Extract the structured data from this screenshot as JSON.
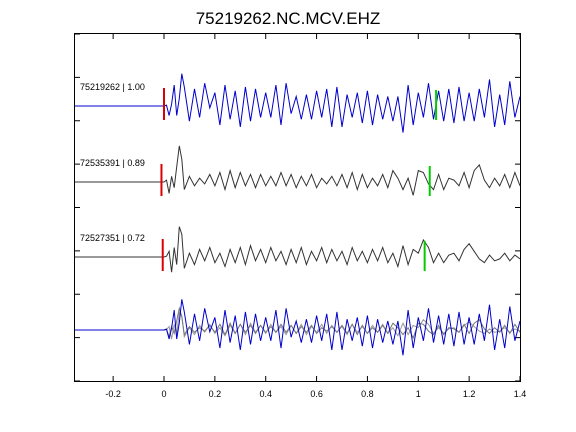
{
  "chart_data": {
    "type": "line",
    "title": "75219262.NC.MCV.EHZ",
    "xlabel": "",
    "ylabel": "",
    "xlim": [
      -0.35,
      1.4
    ],
    "x_ticks": [
      -0.2,
      0,
      0.2,
      0.4,
      0.6,
      0.8,
      1,
      1.2,
      1.4
    ],
    "x_tick_labels": [
      "-0.2",
      "0",
      "0.2",
      "0.4",
      "0.6",
      "0.8",
      "1",
      "1.2",
      "1.4"
    ],
    "grid": false,
    "traces": [
      {
        "label": "75219262 | 1.00",
        "color": "#0000cc",
        "p_pick": 0.0,
        "s_pick": 1.07,
        "p_color": "#dd0000",
        "s_color": "#00cc00",
        "x": [
          -0.35,
          0,
          0.01,
          0.02,
          0.03,
          0.04,
          0.05,
          0.06,
          0.07,
          0.08,
          0.1,
          0.12,
          0.14,
          0.16,
          0.18,
          0.2,
          0.22,
          0.24,
          0.26,
          0.28,
          0.3,
          0.32,
          0.34,
          0.36,
          0.38,
          0.4,
          0.42,
          0.44,
          0.46,
          0.48,
          0.5,
          0.52,
          0.54,
          0.56,
          0.58,
          0.6,
          0.62,
          0.64,
          0.66,
          0.68,
          0.7,
          0.72,
          0.74,
          0.76,
          0.78,
          0.8,
          0.82,
          0.84,
          0.86,
          0.88,
          0.9,
          0.92,
          0.94,
          0.96,
          0.98,
          1,
          1.02,
          1.04,
          1.06,
          1.08,
          1.1,
          1.12,
          1.14,
          1.16,
          1.18,
          1.2,
          1.22,
          1.24,
          1.26,
          1.28,
          1.3,
          1.32,
          1.34,
          1.36,
          1.38,
          1.4
        ],
        "y": [
          0,
          0,
          0.02,
          -0.25,
          0.05,
          0.55,
          -0.25,
          0.2,
          0.85,
          0.5,
          -0.4,
          0.45,
          -0.3,
          0.6,
          -0.05,
          0.35,
          -0.5,
          0.55,
          -0.35,
          0.4,
          -0.55,
          0.5,
          -0.4,
          0.45,
          -0.3,
          0.35,
          -0.3,
          0.55,
          -0.5,
          0.6,
          -0.2,
          0.25,
          -0.35,
          0.3,
          -0.35,
          0.4,
          -0.3,
          0.45,
          -0.55,
          0.5,
          -0.55,
          0.3,
          -0.3,
          0.35,
          -0.45,
          0.4,
          -0.5,
          0.3,
          -0.35,
          0.25,
          -0.4,
          0.25,
          -0.7,
          0.55,
          -0.5,
          0.35,
          -0.3,
          0.6,
          -0.35,
          0.4,
          -0.4,
          0.45,
          -0.45,
          0.5,
          -0.4,
          0.35,
          -0.4,
          0.45,
          -0.3,
          0.7,
          -0.55,
          0.3,
          -0.5,
          0.65,
          -0.3,
          0.25
        ]
      },
      {
        "label": "72535391 | 0.89",
        "color": "#333333",
        "p_pick": -0.01,
        "s_pick": 1.045,
        "p_color": "#dd0000",
        "s_color": "#00cc00",
        "x": [
          -0.35,
          0,
          0.01,
          0.02,
          0.03,
          0.04,
          0.05,
          0.06,
          0.07,
          0.08,
          0.1,
          0.12,
          0.14,
          0.16,
          0.18,
          0.2,
          0.22,
          0.24,
          0.26,
          0.28,
          0.3,
          0.32,
          0.34,
          0.36,
          0.38,
          0.4,
          0.42,
          0.44,
          0.46,
          0.48,
          0.5,
          0.52,
          0.54,
          0.56,
          0.58,
          0.6,
          0.62,
          0.64,
          0.66,
          0.68,
          0.7,
          0.72,
          0.74,
          0.76,
          0.78,
          0.8,
          0.82,
          0.84,
          0.86,
          0.88,
          0.9,
          0.92,
          0.94,
          0.96,
          0.98,
          1,
          1.02,
          1.04,
          1.06,
          1.08,
          1.1,
          1.12,
          1.14,
          1.16,
          1.18,
          1.2,
          1.22,
          1.24,
          1.26,
          1.28,
          1.3,
          1.32,
          1.34,
          1.36,
          1.38,
          1.4
        ],
        "y": [
          0,
          0,
          0.05,
          -0.3,
          0.15,
          -0.15,
          0.4,
          0.95,
          0.6,
          -0.2,
          0.15,
          -0.1,
          0.1,
          -0.05,
          0.2,
          -0.1,
          0.25,
          -0.2,
          0.3,
          -0.15,
          0.25,
          -0.1,
          0.2,
          -0.15,
          0.2,
          -0.1,
          0.15,
          -0.1,
          0.25,
          -0.1,
          0.2,
          -0.15,
          0.15,
          -0.1,
          0.2,
          -0.15,
          0.1,
          -0.05,
          0.15,
          -0.1,
          0.2,
          -0.15,
          0.25,
          -0.2,
          0.2,
          -0.15,
          0.1,
          -0.1,
          0.2,
          -0.15,
          0.3,
          0.1,
          -0.2,
          0.1,
          -0.35,
          0.3,
          0.25,
          -0.05,
          -0.2,
          0.2,
          -0.2,
          0.1,
          0.05,
          -0.1,
          0.25,
          -0.15,
          0.3,
          0.45,
          0.05,
          -0.15,
          0.1,
          -0.1,
          0.2,
          -0.15,
          0.25,
          -0.1
        ]
      },
      {
        "label": "72527351 | 0.72",
        "color": "#333333",
        "p_pick": -0.005,
        "s_pick": 1.025,
        "p_color": "#dd0000",
        "s_color": "#00cc00",
        "x": [
          -0.35,
          0,
          0.01,
          0.02,
          0.03,
          0.04,
          0.05,
          0.06,
          0.07,
          0.08,
          0.1,
          0.12,
          0.14,
          0.16,
          0.18,
          0.2,
          0.22,
          0.24,
          0.26,
          0.28,
          0.3,
          0.32,
          0.34,
          0.36,
          0.38,
          0.4,
          0.42,
          0.44,
          0.46,
          0.48,
          0.5,
          0.52,
          0.54,
          0.56,
          0.58,
          0.6,
          0.62,
          0.64,
          0.66,
          0.68,
          0.7,
          0.72,
          0.74,
          0.76,
          0.78,
          0.8,
          0.82,
          0.84,
          0.86,
          0.88,
          0.9,
          0.92,
          0.94,
          0.96,
          0.98,
          1,
          1.02,
          1.04,
          1.06,
          1.08,
          1.1,
          1.12,
          1.14,
          1.16,
          1.18,
          1.2,
          1.22,
          1.24,
          1.26,
          1.28,
          1.3,
          1.32,
          1.34,
          1.36,
          1.38,
          1.4
        ],
        "y": [
          0,
          0,
          0.02,
          0.15,
          -0.4,
          0.25,
          -0.2,
          0.8,
          0.6,
          -0.3,
          0.1,
          -0.2,
          0.2,
          -0.1,
          0.25,
          -0.15,
          0.1,
          -0.25,
          0.2,
          -0.15,
          0.25,
          -0.2,
          0.3,
          -0.1,
          0.2,
          -0.15,
          0.25,
          -0.1,
          0.15,
          -0.2,
          0.2,
          -0.15,
          0.25,
          -0.2,
          0.15,
          -0.1,
          0.25,
          -0.15,
          0.2,
          -0.1,
          0.15,
          -0.2,
          0.25,
          -0.1,
          0.15,
          -0.15,
          0.2,
          -0.1,
          0.25,
          -0.15,
          0.1,
          -0.25,
          0.3,
          -0.2,
          0.2,
          0.1,
          0.45,
          0.25,
          -0.15,
          0.1,
          -0.15,
          0.05,
          0.1,
          -0.1,
          0.2,
          0.35,
          0.15,
          -0.05,
          -0.15,
          0.05,
          -0.1,
          -0.05,
          0.1,
          -0.1,
          0.05,
          -0.05
        ]
      }
    ],
    "overlay_label": "",
    "y_ticks_count": 8
  }
}
